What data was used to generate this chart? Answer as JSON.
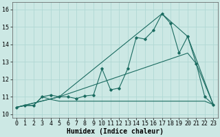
{
  "xlabel": "Humidex (Indice chaleur)",
  "background_color": "#cce8e4",
  "grid_color": "#b0d8d4",
  "line_color": "#1a6b60",
  "xlim": [
    -0.5,
    23.5
  ],
  "ylim": [
    9.8,
    16.4
  ],
  "xticks": [
    0,
    1,
    2,
    3,
    4,
    5,
    6,
    7,
    8,
    9,
    10,
    11,
    12,
    13,
    14,
    15,
    16,
    17,
    18,
    19,
    20,
    21,
    22,
    23
  ],
  "yticks": [
    10,
    11,
    12,
    13,
    14,
    15,
    16
  ],
  "line1_x": [
    0,
    1,
    2,
    3,
    4,
    5,
    6,
    7,
    8,
    9,
    10,
    11,
    12,
    13,
    14,
    15,
    16,
    17,
    18,
    19,
    20,
    21,
    22,
    23
  ],
  "line1_y": [
    10.4,
    10.5,
    10.5,
    11.0,
    11.1,
    11.0,
    11.0,
    10.9,
    11.05,
    11.1,
    12.6,
    11.4,
    11.5,
    12.6,
    14.4,
    14.3,
    14.8,
    15.75,
    15.2,
    13.5,
    14.45,
    12.9,
    11.0,
    10.55
  ],
  "line2_x": [
    0,
    1,
    2,
    3,
    4,
    5,
    6,
    7,
    8,
    9,
    10,
    11,
    12,
    13,
    14,
    15,
    16,
    17,
    18,
    19,
    20,
    21,
    22,
    23
  ],
  "line2_y": [
    10.4,
    10.5,
    10.5,
    11.0,
    10.85,
    10.75,
    10.75,
    10.75,
    10.75,
    10.75,
    10.75,
    10.75,
    10.75,
    10.75,
    10.75,
    10.75,
    10.75,
    10.75,
    10.75,
    10.75,
    10.75,
    10.75,
    10.75,
    10.55
  ],
  "line3_x": [
    0,
    5,
    17,
    20,
    23
  ],
  "line3_y": [
    10.4,
    11.0,
    15.75,
    14.45,
    10.55
  ],
  "line4_x": [
    0,
    5,
    20,
    21,
    23
  ],
  "line4_y": [
    10.4,
    11.0,
    13.5,
    12.9,
    10.55
  ],
  "xlabel_fontsize": 7,
  "tick_fontsize": 6
}
